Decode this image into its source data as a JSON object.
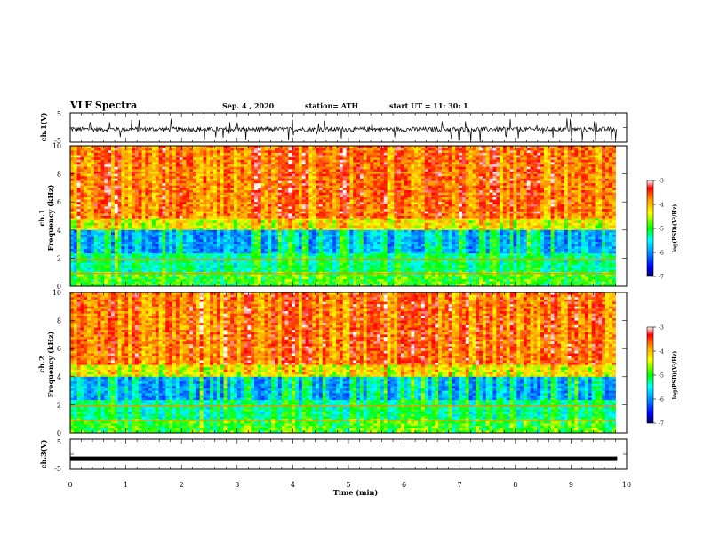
{
  "header": {
    "title": "VLF Spectra",
    "date": "Sep. 4  , 2020",
    "station": "station= ATH",
    "start_ut": "start  UT  =   11: 30: 1"
  },
  "colors": {
    "waveform": "#000000",
    "colormap": [
      "#000055",
      "#0000ff",
      "#0090ff",
      "#00ffff",
      "#00ff00",
      "#ffff00",
      "#ff9900",
      "#ff0000",
      "#ffffff"
    ]
  },
  "chart_data": [
    {
      "type": "line",
      "name": "ch1-waveform",
      "ylabel": "ch.1(V)",
      "ylim": [
        -5,
        5
      ],
      "yticks": [
        "5",
        "-5"
      ],
      "xlim": [
        0,
        10
      ],
      "note_level_v": -0.6
    },
    {
      "type": "heatmap",
      "name": "ch1-spectrogram",
      "ylabel": "ch.1\nFrequency  (kHz)",
      "ylim": [
        0,
        10
      ],
      "yticks": [
        "0",
        "2",
        "4",
        "6",
        "8",
        "10"
      ],
      "xlim": [
        0,
        10
      ],
      "data_xmax_min": 9.8,
      "colorbar": {
        "label": "log(PSD)(V²/Hz)",
        "range": [
          -7,
          -3
        ],
        "ticks": [
          "-3",
          "-4",
          "-5",
          "-6",
          "-7"
        ]
      }
    },
    {
      "type": "heatmap",
      "name": "ch2-spectrogram",
      "ylabel": "ch.2\nFrequency  (kHz)",
      "ylim": [
        0,
        10
      ],
      "yticks": [
        "0",
        "2",
        "4",
        "6",
        "8",
        "10"
      ],
      "xlim": [
        0,
        10
      ],
      "data_xmax_min": 9.8,
      "colorbar": {
        "label": "log(PSD)(V²/Hz)",
        "range": [
          -7,
          -3
        ],
        "ticks": [
          "-3",
          "-4",
          "-5",
          "-6",
          "-7"
        ]
      }
    },
    {
      "type": "line",
      "name": "ch3-waveform",
      "ylabel": "ch.3(V)",
      "ylim": [
        -5,
        5
      ],
      "yticks": [
        "5",
        "-5"
      ],
      "xlim": [
        0,
        10
      ],
      "xticks": [
        "0",
        "1",
        "2",
        "3",
        "4",
        "5",
        "6",
        "7",
        "8",
        "9",
        "10"
      ],
      "xlabel": "Time  (min)",
      "level_v": -1.5
    }
  ]
}
